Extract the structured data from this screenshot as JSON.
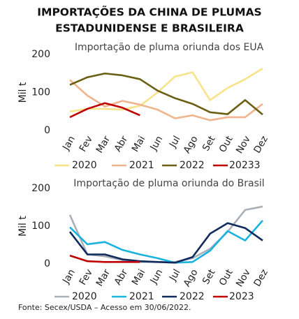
{
  "title_lines": [
    "IMPORTAÇÕES DA CHINA DE PLUMAS",
    "ESTADUNIDENSE E BRASILEIRA"
  ],
  "source": "Fonte: Secex/USDA – Acesso em 30/06/2022.",
  "chart_data": [
    {
      "type": "line",
      "title": "Importação de pluma oriunda dos EUA",
      "y_label": "Mil t",
      "categories": [
        "Jan",
        "Fev",
        "Mar",
        "Abr",
        "Mai",
        "Jun",
        "Jul",
        "Ago",
        "Set",
        "Out",
        "Nov",
        "Dez"
      ],
      "ylim": [
        0,
        200
      ],
      "yticks": [
        0,
        100,
        200
      ],
      "series": [
        {
          "name": "2020",
          "color": "#f9e38a",
          "values": [
            50,
            57,
            57,
            55,
            65,
            100,
            142,
            153,
            80,
            112,
            135,
            163
          ]
        },
        {
          "name": "2021",
          "color": "#f0b48f",
          "values": [
            133,
            92,
            63,
            78,
            68,
            55,
            32,
            40,
            27,
            35,
            35,
            70
          ]
        },
        {
          "name": "2022",
          "color": "#6b5f14",
          "values": [
            120,
            140,
            150,
            145,
            135,
            105,
            85,
            70,
            48,
            43,
            80,
            42
          ]
        },
        {
          "name": "20233",
          "color": "#c00000",
          "values": [
            35,
            57,
            72,
            60,
            40,
            null,
            null,
            null,
            null,
            null,
            null,
            null
          ]
        }
      ]
    },
    {
      "type": "line",
      "title": "Importação de pluma oriunda do Brasil",
      "y_label": "Mil t",
      "categories": [
        "Jan",
        "Fev",
        "Mar",
        "Abr",
        "Mai",
        "Jun",
        "Jul",
        "Ago",
        "Set",
        "Out",
        "Nov",
        "Dez"
      ],
      "ylim": [
        0,
        200
      ],
      "yticks": [
        0,
        100,
        200
      ],
      "series": [
        {
          "name": "2020",
          "color": "#aab0b8",
          "values": [
            130,
            25,
            20,
            10,
            5,
            5,
            5,
            15,
            40,
            85,
            143,
            152
          ]
        },
        {
          "name": "2021",
          "color": "#1ab3e0",
          "values": [
            97,
            52,
            58,
            37,
            25,
            15,
            3,
            5,
            35,
            87,
            62,
            115
          ]
        },
        {
          "name": "2022",
          "color": "#0f2a5c",
          "values": [
            85,
            25,
            25,
            12,
            7,
            5,
            3,
            18,
            80,
            108,
            95,
            62
          ]
        },
        {
          "name": "2023",
          "color": "#c00000",
          "values": [
            22,
            7,
            5,
            5,
            5,
            null,
            null,
            null,
            null,
            null,
            null,
            null
          ]
        }
      ]
    }
  ]
}
